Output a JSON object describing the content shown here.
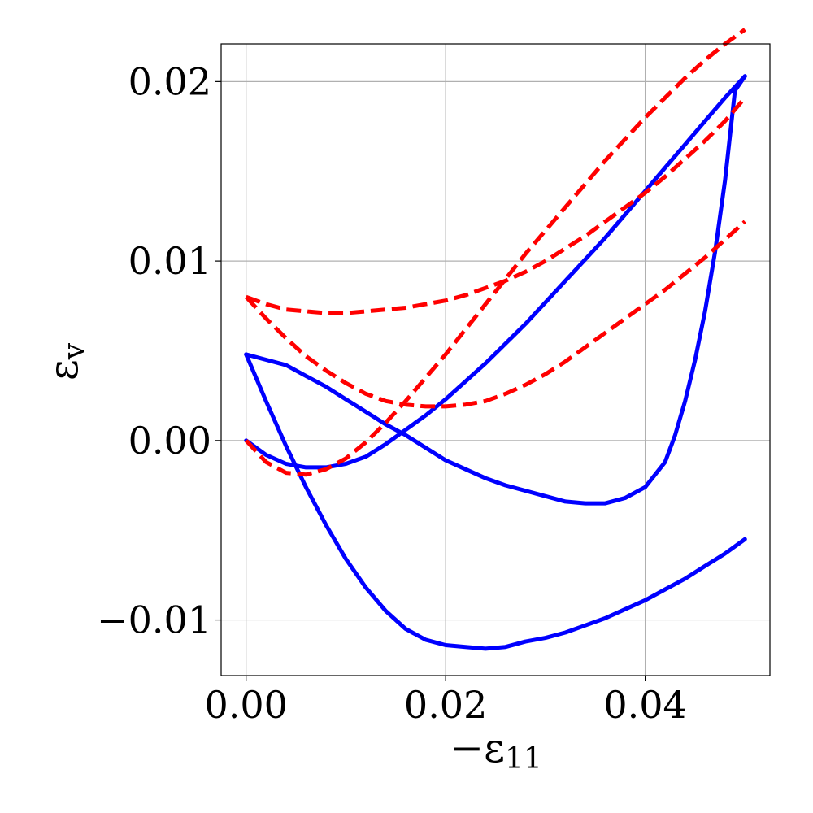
{
  "chart_data": {
    "type": "line",
    "title": "",
    "xlabel": "−ε",
    "xlabel_sub": "11",
    "ylabel": "ε",
    "ylabel_sub": "v",
    "xlim": [
      -0.0025,
      0.0525
    ],
    "ylim": [
      -0.0131,
      0.0221
    ],
    "x_ticks": [
      0.0,
      0.02,
      0.04
    ],
    "x_tick_labels": [
      "0.00",
      "0.02",
      "0.04"
    ],
    "y_ticks": [
      -0.01,
      0.0,
      0.01,
      0.02
    ],
    "y_tick_labels": [
      "−0.01",
      "0.00",
      "0.01",
      "0.02"
    ],
    "grid": true,
    "colors": {
      "solid": "#0000ff",
      "dashed": "#ff0000"
    },
    "series": [
      {
        "style": "solid",
        "color": "#0000ff",
        "x": [
          0.0,
          0.002,
          0.004,
          0.006,
          0.008,
          0.01,
          0.012,
          0.014,
          0.016,
          0.018,
          0.02,
          0.022,
          0.024,
          0.026,
          0.028,
          0.03,
          0.032,
          0.034,
          0.036,
          0.038,
          0.04,
          0.042,
          0.044,
          0.046,
          0.048,
          0.05
        ],
        "y": [
          0.0,
          -0.0008,
          -0.0013,
          -0.0015,
          -0.0015,
          -0.0013,
          -0.0009,
          -0.0002,
          0.0006,
          0.0014,
          0.0023,
          0.0033,
          0.0043,
          0.0054,
          0.0065,
          0.0077,
          0.0089,
          0.0101,
          0.0113,
          0.0126,
          0.0139,
          0.0152,
          0.0165,
          0.0178,
          0.0191,
          0.0203
        ]
      },
      {
        "style": "solid",
        "color": "#0000ff",
        "x": [
          0.05,
          0.049,
          0.0485,
          0.048,
          0.047,
          0.046,
          0.045,
          0.044,
          0.043,
          0.042,
          0.04,
          0.038,
          0.036,
          0.034,
          0.032,
          0.03,
          0.028,
          0.026,
          0.024,
          0.022,
          0.02,
          0.018,
          0.016,
          0.014,
          0.012,
          0.01,
          0.008,
          0.006,
          0.004,
          0.002,
          0.0
        ],
        "y": [
          0.0203,
          0.0195,
          0.017,
          0.0145,
          0.0105,
          0.0072,
          0.0045,
          0.0022,
          0.0003,
          -0.0012,
          -0.0026,
          -0.0032,
          -0.0035,
          -0.0035,
          -0.0034,
          -0.0031,
          -0.0028,
          -0.0025,
          -0.0021,
          -0.0016,
          -0.0011,
          -0.0004,
          0.0003,
          0.0009,
          0.0016,
          0.0023,
          0.003,
          0.0036,
          0.0042,
          0.0045,
          0.0048
        ]
      },
      {
        "style": "solid",
        "color": "#0000ff",
        "x": [
          0.0,
          0.002,
          0.004,
          0.006,
          0.008,
          0.01,
          0.012,
          0.014,
          0.016,
          0.018,
          0.02,
          0.022,
          0.024,
          0.026,
          0.028,
          0.03,
          0.032,
          0.034,
          0.036,
          0.038,
          0.04,
          0.042,
          0.044,
          0.046,
          0.048,
          0.05
        ],
        "y": [
          0.0048,
          0.0022,
          -0.0003,
          -0.0026,
          -0.0047,
          -0.0066,
          -0.0082,
          -0.0095,
          -0.0105,
          -0.0111,
          -0.0114,
          -0.0115,
          -0.0116,
          -0.0115,
          -0.0112,
          -0.011,
          -0.0107,
          -0.0103,
          -0.0099,
          -0.0094,
          -0.0089,
          -0.0083,
          -0.0077,
          -0.007,
          -0.0063,
          -0.0055
        ]
      },
      {
        "style": "dashed",
        "color": "#ff0000",
        "x": [
          0.0,
          0.002,
          0.004,
          0.006,
          0.008,
          0.01,
          0.012,
          0.014,
          0.016,
          0.018,
          0.02,
          0.022,
          0.024,
          0.026,
          0.028,
          0.03,
          0.032,
          0.034,
          0.036,
          0.038,
          0.04,
          0.042,
          0.044,
          0.046,
          0.048,
          0.05
        ],
        "y": [
          0.0,
          -0.0012,
          -0.0018,
          -0.0019,
          -0.0016,
          -0.001,
          -0.0001,
          0.001,
          0.0022,
          0.0035,
          0.0048,
          0.0062,
          0.0076,
          0.009,
          0.0104,
          0.0117,
          0.013,
          0.0143,
          0.0156,
          0.0168,
          0.018,
          0.0191,
          0.0202,
          0.0212,
          0.0221,
          0.0229
        ]
      },
      {
        "style": "dashed",
        "color": "#ff0000",
        "x": [
          0.0,
          0.002,
          0.004,
          0.006,
          0.008,
          0.01,
          0.012,
          0.014,
          0.016,
          0.018,
          0.02,
          0.022,
          0.024,
          0.026,
          0.028,
          0.03,
          0.032,
          0.034,
          0.036,
          0.038,
          0.04,
          0.042,
          0.044,
          0.046,
          0.048,
          0.05
        ],
        "y": [
          0.008,
          0.0068,
          0.0057,
          0.0047,
          0.0039,
          0.0032,
          0.0026,
          0.0022,
          0.002,
          0.0019,
          0.0019,
          0.002,
          0.0022,
          0.0026,
          0.0031,
          0.0037,
          0.0044,
          0.0052,
          0.006,
          0.0068,
          0.0076,
          0.0084,
          0.0093,
          0.0102,
          0.0112,
          0.0122
        ]
      },
      {
        "style": "dashed",
        "color": "#ff0000",
        "x": [
          0.0,
          0.002,
          0.004,
          0.006,
          0.008,
          0.01,
          0.012,
          0.014,
          0.016,
          0.018,
          0.02,
          0.022,
          0.024,
          0.026,
          0.028,
          0.03,
          0.032,
          0.034,
          0.036,
          0.038,
          0.04,
          0.042,
          0.044,
          0.046,
          0.048,
          0.05
        ],
        "y": [
          0.008,
          0.0076,
          0.0073,
          0.0072,
          0.0071,
          0.0071,
          0.0072,
          0.0073,
          0.0074,
          0.0076,
          0.0078,
          0.0081,
          0.0085,
          0.0089,
          0.0094,
          0.01,
          0.0107,
          0.0114,
          0.0122,
          0.013,
          0.0138,
          0.0147,
          0.0157,
          0.0167,
          0.0178,
          0.0191
        ]
      }
    ]
  }
}
